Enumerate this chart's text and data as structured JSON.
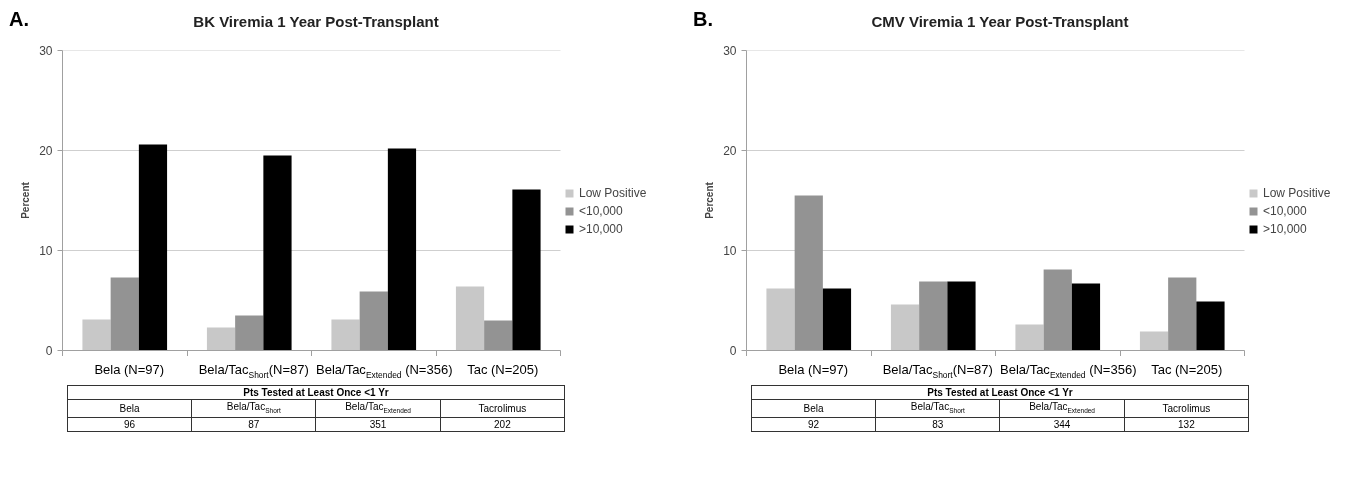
{
  "chart_data": [
    {
      "type": "bar",
      "title": "BK Viremia 1 Year Post-Transplant",
      "ylabel": "Percent",
      "categories": [
        "Bela (N=97)",
        "Bela/Tac$_{Short}$(N=87)",
        "Bela/Tac$_{Extended}$ (N=356)",
        "Tac (N=205)"
      ],
      "series": [
        {
          "name": "Low Positive",
          "color": "#c8c8c8",
          "values": [
            3.1,
            2.3,
            3.1,
            6.4
          ]
        },
        {
          "name": "<10,000",
          "color": "#939393",
          "values": [
            7.3,
            3.5,
            5.9,
            3.0
          ]
        },
        {
          "name": ">10,000",
          "color": "#000000",
          "values": [
            20.6,
            19.5,
            20.2,
            16.1
          ]
        }
      ],
      "ylim": [
        0,
        30
      ],
      "yticks": [
        0,
        10,
        20,
        30
      ],
      "grid": "y",
      "legend": "right",
      "annotations": [
        "A.",
        "Pts Tested at Least Once <1 Yr",
        "Bela",
        "Bela/Tac$_{Short}$",
        "Bela/Tac$_{Extended}$",
        "Tacrolimus",
        "96",
        "87",
        "351",
        "202"
      ]
    },
    {
      "type": "bar",
      "title": "CMV Viremia 1 Year Post-Transplant",
      "ylabel": "Percent",
      "categories": [
        "Bela (N=97)",
        "Bela/Tac$_{Short}$(N=87)",
        "Bela/Tac$_{Extended}$ (N=356)",
        "Tac (N=205)"
      ],
      "series": [
        {
          "name": "Low Positive",
          "color": "#c8c8c8",
          "values": [
            6.2,
            4.6,
            2.6,
            1.9
          ]
        },
        {
          "name": "<10,000",
          "color": "#939393",
          "values": [
            15.5,
            6.9,
            8.1,
            7.3
          ]
        },
        {
          "name": ">10,000",
          "color": "#000000",
          "values": [
            6.2,
            6.9,
            6.7,
            4.9
          ]
        }
      ],
      "ylim": [
        0,
        30
      ],
      "yticks": [
        0,
        10,
        20,
        30
      ],
      "grid": "y",
      "legend": "right",
      "annotations": [
        "B.",
        "Pts Tested at Least Once <1 Yr",
        "Bela",
        "Bela/Tac$_{Short}$",
        "Bela/Tac$_{Extended}$",
        "Tacrolimus",
        "92",
        "83",
        "344",
        "132"
      ]
    }
  ]
}
